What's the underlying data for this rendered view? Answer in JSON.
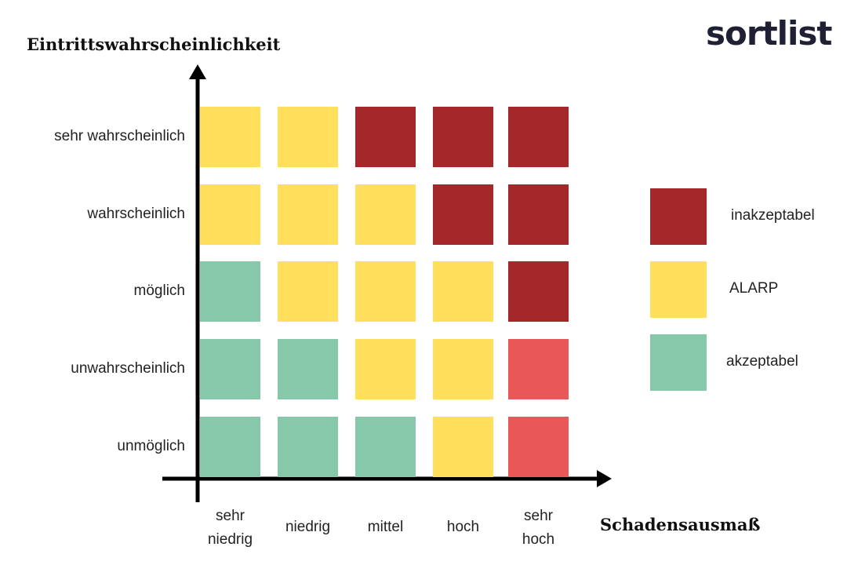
{
  "brand": {
    "logo_text": "sortlist"
  },
  "axes": {
    "y_title": "Eintrittswahrscheinlichkeit",
    "x_title": "Schadensausmaß"
  },
  "rows": [
    "sehr wahrscheinlich",
    "wahrscheinlich",
    "möglich",
    "unwahrscheinlich",
    "unmöglich"
  ],
  "columns": [
    "sehr\nniedrig",
    "niedrig",
    "mittel",
    "hoch",
    "sehr\nhoch"
  ],
  "colors": {
    "inakzeptabel": "#a4282a",
    "alarp": "#ffdf5c",
    "akzeptabel": "#86c8a9",
    "red_light": "#e95858",
    "axis": "#000000"
  },
  "matrix": [
    [
      "alarp",
      "alarp",
      "inakzeptabel",
      "inakzeptabel",
      "inakzeptabel"
    ],
    [
      "alarp",
      "alarp",
      "alarp",
      "inakzeptabel",
      "inakzeptabel"
    ],
    [
      "akzeptabel",
      "alarp",
      "alarp",
      "alarp",
      "inakzeptabel"
    ],
    [
      "akzeptabel",
      "akzeptabel",
      "alarp",
      "alarp",
      "red_light"
    ],
    [
      "akzeptabel",
      "akzeptabel",
      "akzeptabel",
      "alarp",
      "red_light"
    ]
  ],
  "legend": [
    {
      "key": "inakzeptabel",
      "label": "inakzeptabel"
    },
    {
      "key": "alarp",
      "label": "ALARP"
    },
    {
      "key": "akzeptabel",
      "label": "akzeptabel"
    }
  ]
}
